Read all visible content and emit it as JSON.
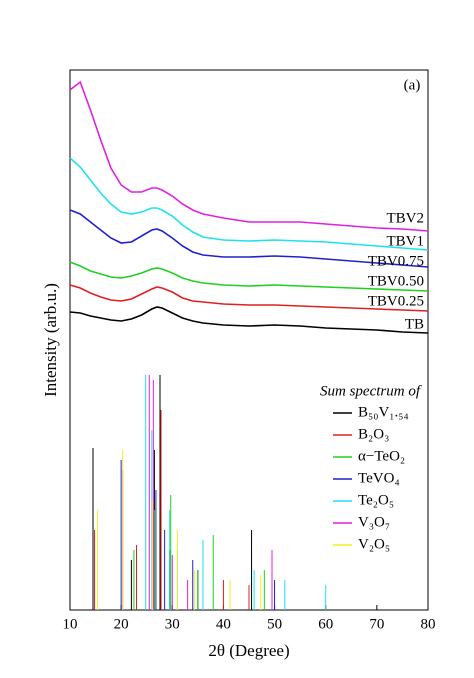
{
  "chart_data": {
    "type": "line",
    "panel_label": "(a)",
    "x_label": "2θ (Degree)",
    "y_label": "Intensity (arb.u.)",
    "xlim": [
      10,
      80
    ],
    "xticks": [
      10,
      20,
      30,
      40,
      50,
      60,
      70,
      80
    ],
    "ylim": [
      0,
      540
    ],
    "x": [
      10,
      12,
      14,
      16,
      18,
      20,
      22,
      24,
      26,
      27,
      28,
      30,
      32,
      34,
      36,
      40,
      45,
      50,
      55,
      60,
      65,
      70,
      75,
      80
    ],
    "series": [
      {
        "name": "TBV2",
        "color": "#e020e0",
        "values": [
          520,
          528,
          500,
          470,
          442,
          425,
          418,
          418,
          422,
          422,
          420,
          414,
          406,
          400,
          396,
          392,
          388,
          388,
          388,
          386,
          384,
          382,
          381,
          379
        ]
      },
      {
        "name": "TBV1",
        "color": "#20e0f0",
        "values": [
          452,
          443,
          430,
          417,
          406,
          398,
          396,
          398,
          402,
          402,
          400,
          394,
          385,
          378,
          373,
          370,
          369,
          370,
          369,
          368,
          366,
          364,
          362,
          360
        ]
      },
      {
        "name": "TBV0.75",
        "color": "#2020d0",
        "values": [
          400,
          396,
          388,
          380,
          372,
          367,
          368,
          374,
          380,
          381,
          379,
          372,
          364,
          358,
          355,
          353,
          353,
          354,
          353,
          351,
          349,
          347,
          345,
          343
        ]
      },
      {
        "name": "TBV0.50",
        "color": "#20d020",
        "values": [
          348,
          344,
          339,
          336,
          333,
          332,
          334,
          337,
          341,
          342,
          341,
          337,
          332,
          329,
          327,
          325,
          324,
          325,
          324,
          323,
          322,
          321,
          320,
          319
        ]
      },
      {
        "name": "TBV0.25",
        "color": "#e02020",
        "values": [
          325,
          322,
          317,
          313,
          310,
          309,
          311,
          316,
          321,
          323,
          322,
          318,
          312,
          309,
          308,
          306,
          305,
          305,
          304,
          303,
          302,
          301,
          300,
          299
        ]
      },
      {
        "name": "TB",
        "color": "#000000",
        "values": [
          298,
          297,
          294,
          292,
          290,
          289,
          291,
          295,
          301,
          303,
          302,
          297,
          292,
          289,
          287,
          285,
          284,
          285,
          284,
          282,
          281,
          280,
          278,
          277
        ]
      }
    ],
    "legend_title": "Sum spectrum of",
    "reference_series": [
      {
        "name": "B₅₀V₁.₅₄",
        "color": "#000000",
        "x": [
          14.5,
          22,
          26.5,
          27.6,
          29.5,
          35,
          45.5
        ],
        "values": [
          162,
          50,
          160,
          235,
          60,
          40,
          80
        ]
      },
      {
        "name": "B₂O₃",
        "color": "#e02020",
        "x": [
          14.8,
          23,
          27.8,
          40,
          45
        ],
        "values": [
          80,
          65,
          200,
          30,
          25
        ]
      },
      {
        "name": "α−TeO₂",
        "color": "#20d020",
        "x": [
          22.5,
          26.5,
          29.7,
          35,
          38,
          48
        ],
        "values": [
          60,
          100,
          115,
          40,
          75,
          40
        ]
      },
      {
        "name": "TeVO₄",
        "color": "#2020d0",
        "x": [
          20,
          26.8,
          28.5,
          34,
          50
        ],
        "values": [
          150,
          120,
          80,
          50,
          30
        ]
      },
      {
        "name": "Te₂O₅",
        "color": "#20e0f0",
        "x": [
          24.8,
          26,
          29.5,
          31,
          36,
          46,
          52,
          60
        ],
        "values": [
          235,
          180,
          100,
          60,
          70,
          40,
          30,
          25
        ]
      },
      {
        "name": "V₃O₇",
        "color": "#e020e0",
        "x": [
          20.3,
          25.5,
          26.3,
          30,
          33,
          49.5
        ],
        "values": [
          140,
          235,
          230,
          55,
          30,
          60
        ]
      },
      {
        "name": "V₂O₅",
        "color": "#f0f020",
        "x": [
          15.4,
          20.3,
          26.1,
          31,
          34.3,
          41.3,
          47.3
        ],
        "values": [
          100,
          160,
          110,
          80,
          40,
          30,
          35
        ]
      }
    ]
  }
}
